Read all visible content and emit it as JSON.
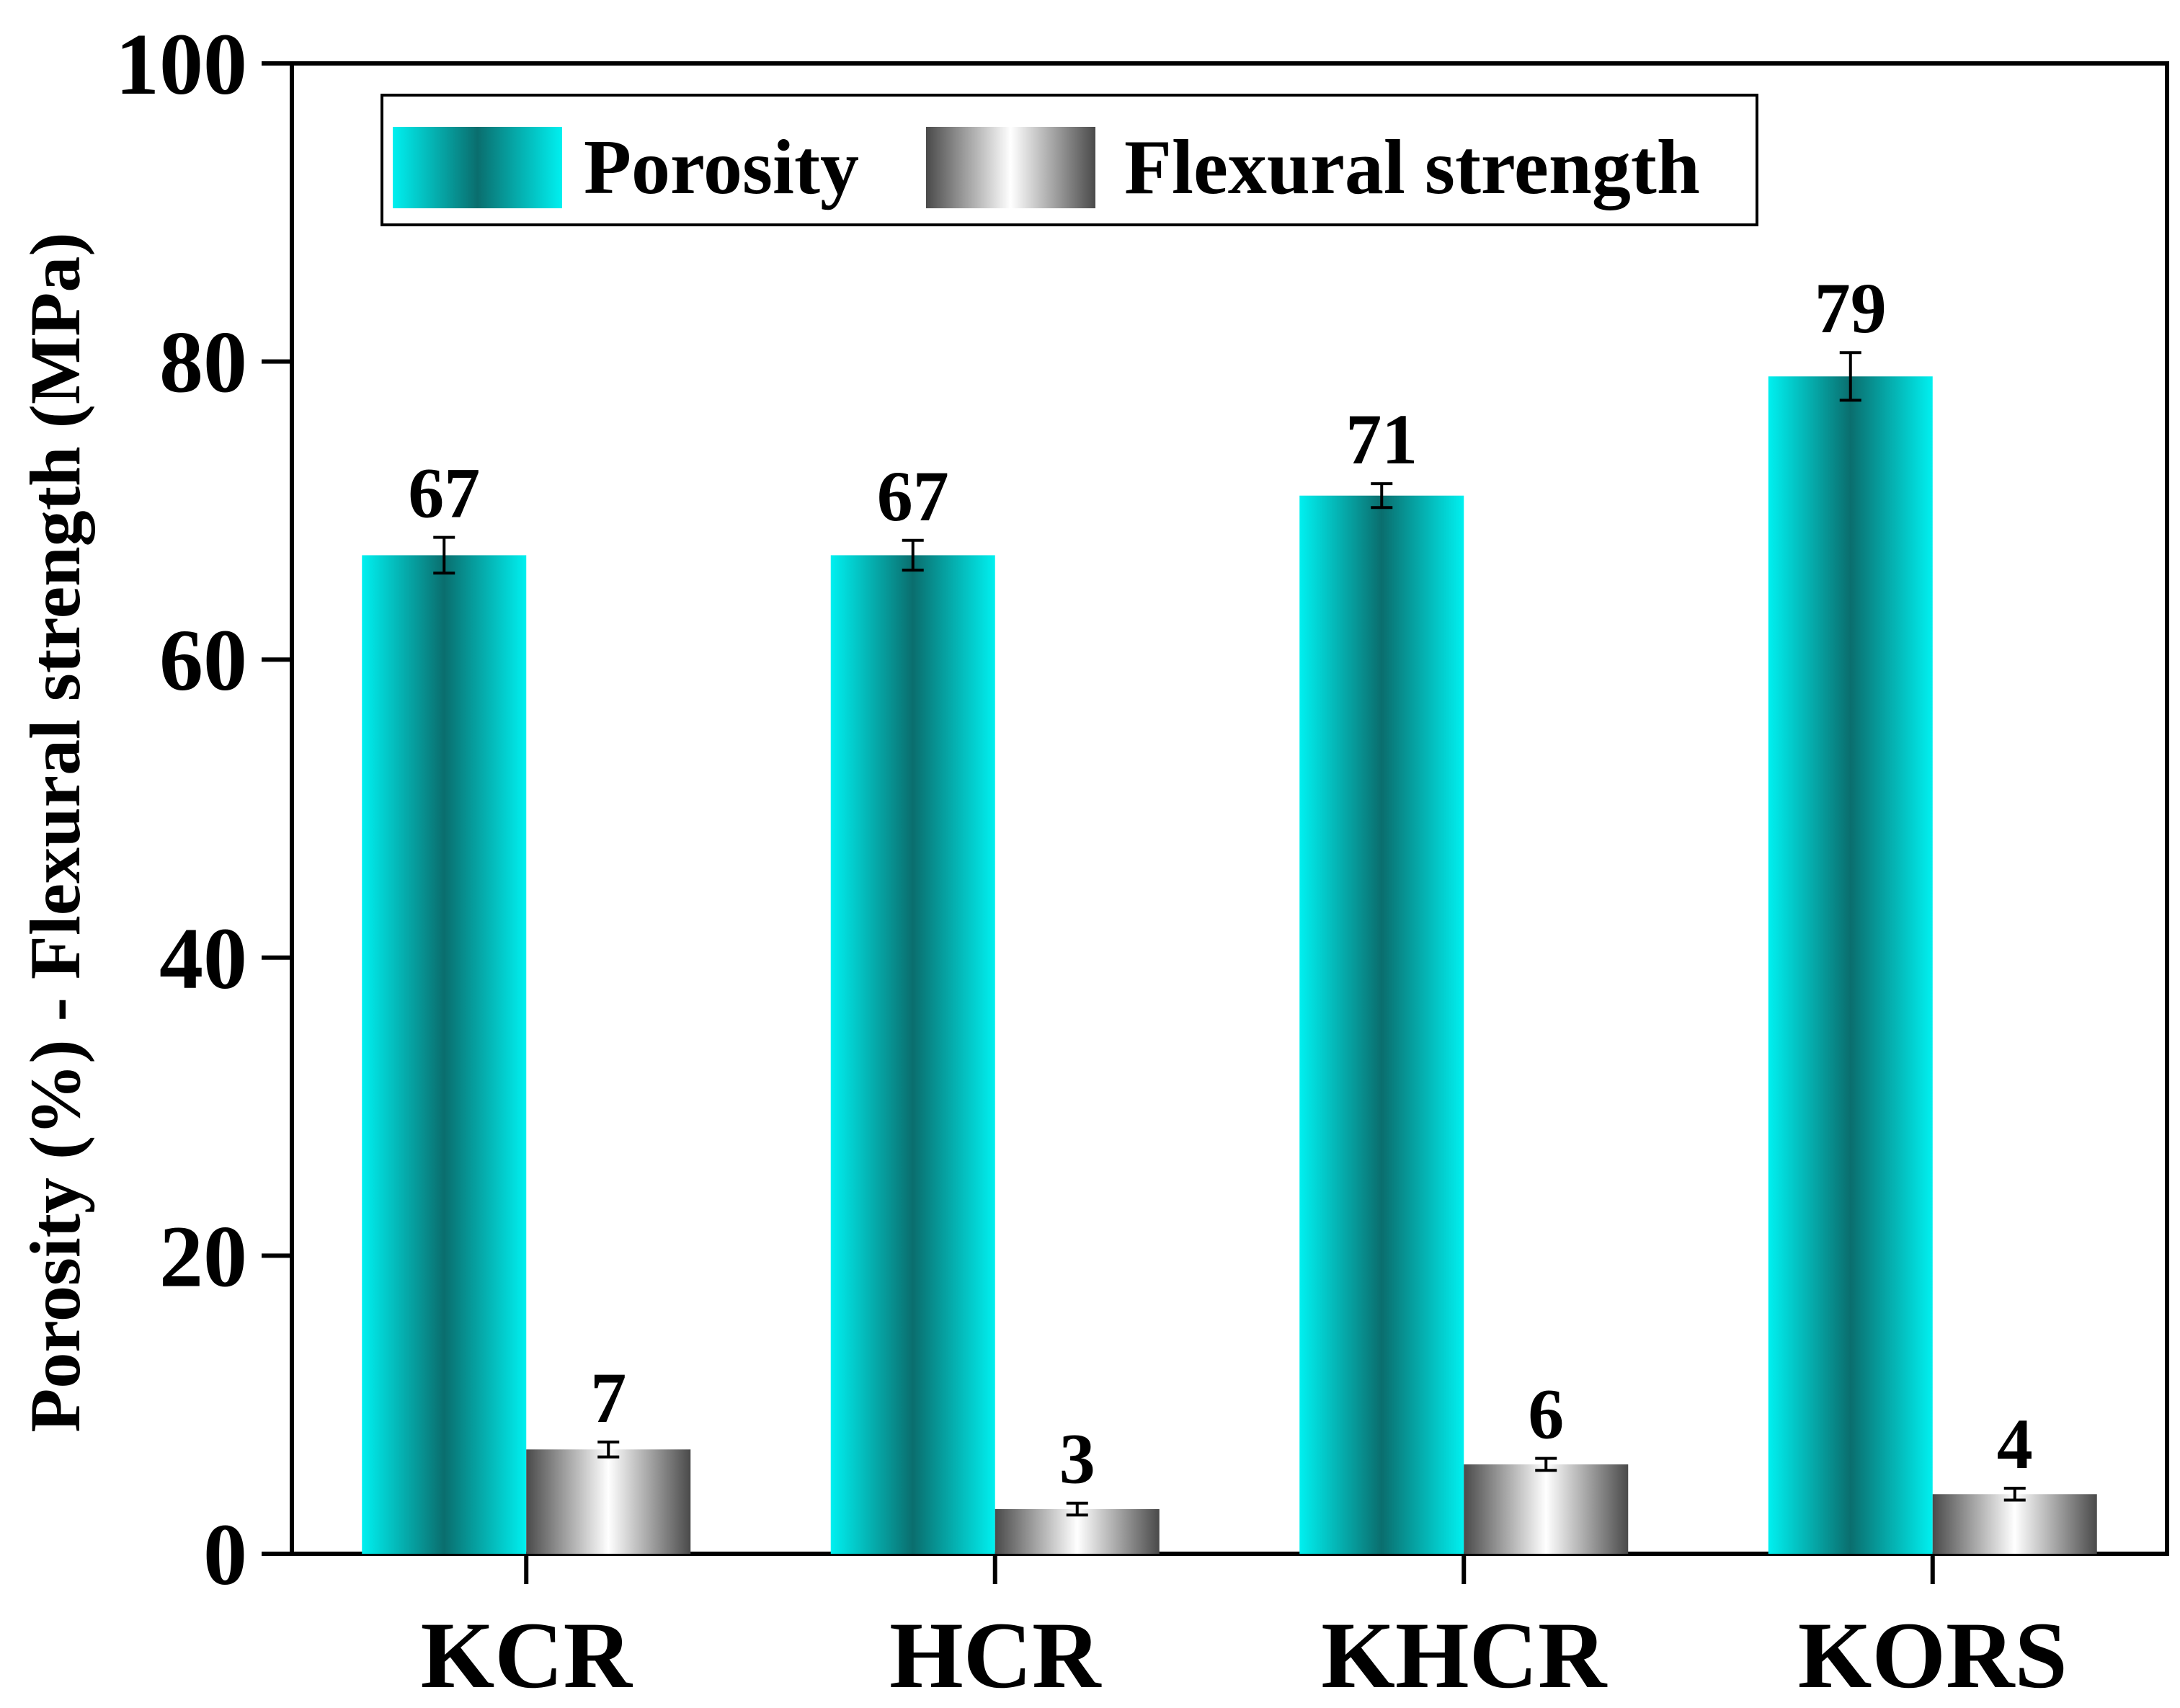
{
  "chart_data": {
    "type": "bar",
    "title": "",
    "xlabel": "",
    "ylabel": "Porosity (%) - Flexural strength (MPa)",
    "ylim": [
      0,
      100
    ],
    "yticks": [
      "0",
      "20",
      "40",
      "60",
      "80",
      "100"
    ],
    "categories": [
      "KCR",
      "HCR",
      "KHCR",
      "KORS"
    ],
    "legend_position": "top",
    "series": [
      {
        "name": "Porosity",
        "values": [
          67,
          67,
          71,
          79
        ],
        "errors": [
          1.2,
          1.0,
          0.8,
          1.6
        ],
        "labels": [
          "67",
          "67",
          "71",
          "79"
        ],
        "color": "#00e5e5",
        "color_dark": "#0a6e6e"
      },
      {
        "name": "Flexural strength",
        "values": [
          7,
          3,
          6,
          4
        ],
        "errors": [
          0.5,
          0.4,
          0.4,
          0.4
        ],
        "labels": [
          "7",
          "3",
          "6",
          "4"
        ],
        "color": "#ffffff",
        "color_dark": "#4a4a4a"
      }
    ]
  }
}
